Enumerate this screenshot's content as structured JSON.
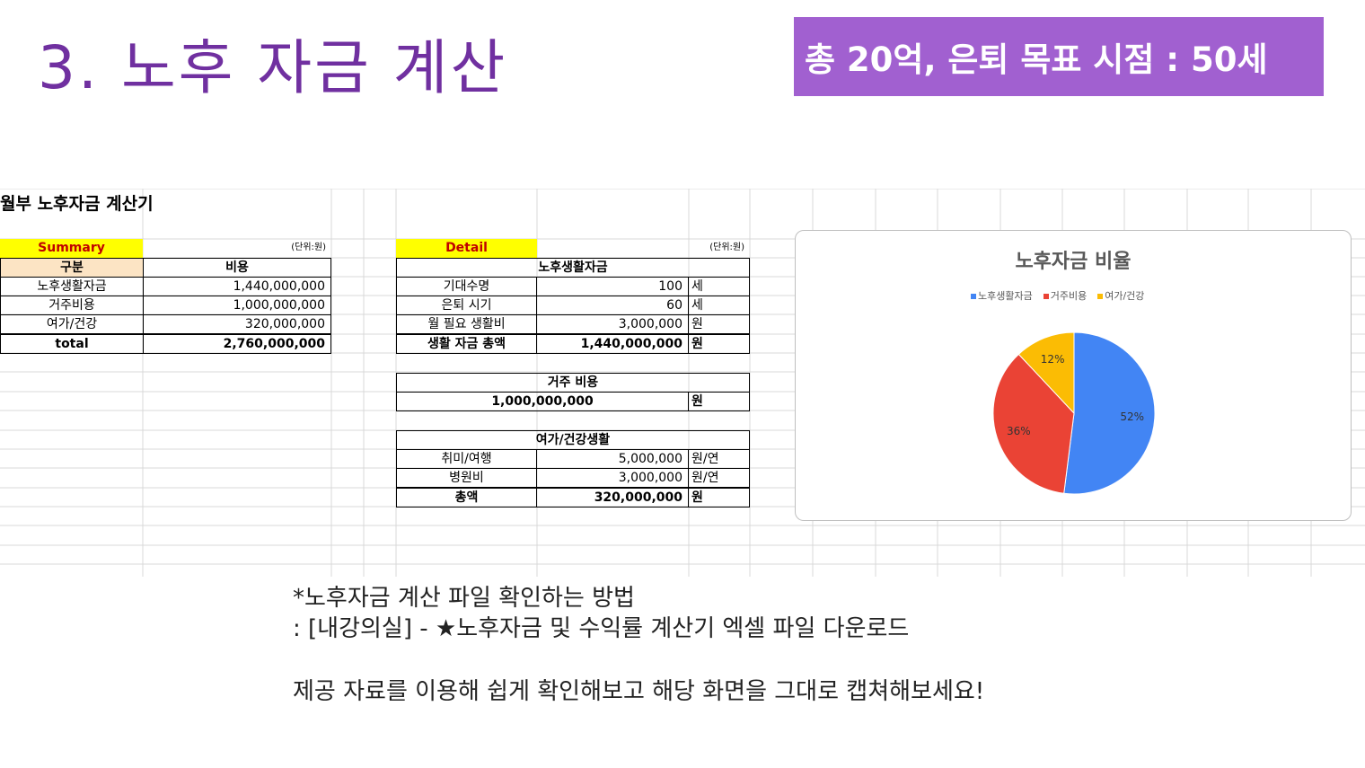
{
  "slide": {
    "title": "3. 노후 자금 계산",
    "goal_banner": "총 20억, 은퇴 목표 시점  : 50세"
  },
  "sheet": {
    "title": "월부 노후자금 계산기",
    "summary": {
      "label": "Summary",
      "unit": "(단위:원)",
      "header_col1": "구분",
      "header_col2": "비용",
      "rows": [
        {
          "name": "노후생활자금",
          "value": "1,440,000,000"
        },
        {
          "name": "거주비용",
          "value": "1,000,000,000"
        },
        {
          "name": "여가/건강",
          "value": "320,000,000"
        }
      ],
      "total_label": "total",
      "total_value": "2,760,000,000"
    },
    "detail": {
      "label": "Detail",
      "unit": "(단위:원)",
      "living": {
        "header": "노후생활자금",
        "rows": [
          {
            "name": "기대수명",
            "value": "100",
            "unit": "세"
          },
          {
            "name": "은퇴 시기",
            "value": "60",
            "unit": "세"
          },
          {
            "name": "월 필요 생활비",
            "value": "3,000,000",
            "unit": "원"
          },
          {
            "name": "생활 자금 총액",
            "value": "1,440,000,000",
            "unit": "원"
          }
        ]
      },
      "housing": {
        "header": "거주 비용",
        "value": "1,000,000,000",
        "unit": "원"
      },
      "leisure": {
        "header": "여가/건강생활",
        "rows": [
          {
            "name": "취미/여행",
            "value": "5,000,000",
            "unit": "원/연"
          },
          {
            "name": "병원비",
            "value": "3,000,000",
            "unit": "원/연"
          },
          {
            "name": "총액",
            "value": "320,000,000",
            "unit": "원"
          }
        ]
      }
    }
  },
  "chart_data": {
    "type": "pie",
    "title": "노후자금 비율",
    "categories": [
      "노후생활자금",
      "거주비용",
      "여가/건강"
    ],
    "values": [
      52,
      36,
      12
    ],
    "labels": [
      "52%",
      "36%",
      "12%"
    ],
    "colors": [
      "#4285f4",
      "#ea4335",
      "#fbbc04"
    ],
    "legend_position": "top"
  },
  "notes": {
    "line1": "*노후자금 계산 파일 확인하는 방법",
    "line2": ": [내강의실] - ★노후자금 및 수익률 계산기 엑셀 파일 다운로드",
    "line3": "제공 자료를 이용해 쉽게 확인해보고 해당 화면을 그대로 캡쳐해보세요!"
  }
}
